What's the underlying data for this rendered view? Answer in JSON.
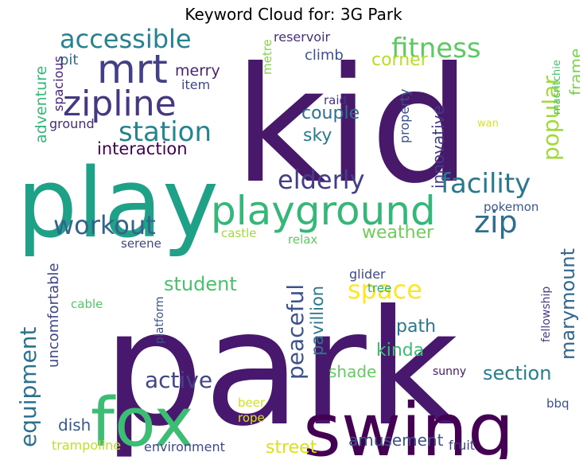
{
  "title": "Keyword Cloud for: 3G Park",
  "colors": {
    "background": "#ffffff",
    "title": "#000000"
  },
  "words": [
    {
      "text": "park",
      "color": "#47186e"
    },
    {
      "text": "kid",
      "color": "#48196b"
    },
    {
      "text": "play",
      "color": "#1fa187"
    },
    {
      "text": "swing",
      "color": "#440154"
    },
    {
      "text": "fox",
      "color": "#3dbc74"
    },
    {
      "text": "playground",
      "color": "#35b779"
    },
    {
      "text": "zipline",
      "color": "#453781"
    },
    {
      "text": "mrt",
      "color": "#424086"
    },
    {
      "text": "station",
      "color": "#25858e"
    },
    {
      "text": "accessible",
      "color": "#26828e"
    },
    {
      "text": "fitness",
      "color": "#5ec962"
    },
    {
      "text": "facility",
      "color": "#2a788e"
    },
    {
      "text": "elderly",
      "color": "#433e85"
    },
    {
      "text": "zip",
      "color": "#2e6e8e"
    },
    {
      "text": "workout",
      "color": "#33638d"
    },
    {
      "text": "popular",
      "color": "#a0da39"
    },
    {
      "text": "interaction",
      "color": "#440154"
    },
    {
      "text": "space",
      "color": "#fde725"
    },
    {
      "text": "peaceful",
      "color": "#3b528b"
    },
    {
      "text": "active",
      "color": "#414487"
    },
    {
      "text": "equipment",
      "color": "#2c728e"
    },
    {
      "text": "marymount",
      "color": "#31688e"
    },
    {
      "text": "pavillion",
      "color": "#2a788e"
    },
    {
      "text": "uncomfortable",
      "color": "#404688"
    },
    {
      "text": "student",
      "color": "#4ac16d"
    },
    {
      "text": "weather",
      "color": "#6ece58"
    },
    {
      "text": "section",
      "color": "#277f8e"
    },
    {
      "text": "innovative",
      "color": "#443983"
    },
    {
      "text": "couple",
      "color": "#2c728e"
    },
    {
      "text": "frame",
      "color": "#7ad151"
    },
    {
      "text": "corner",
      "color": "#b5de2b"
    },
    {
      "text": "sky",
      "color": "#287c8e"
    },
    {
      "text": "path",
      "color": "#2a778e"
    },
    {
      "text": "kinda",
      "color": "#3dbc74"
    },
    {
      "text": "shade",
      "color": "#63cb5f"
    },
    {
      "text": "street",
      "color": "#d8e219"
    },
    {
      "text": "amusement",
      "color": "#3b528b"
    },
    {
      "text": "dish",
      "color": "#38598c"
    },
    {
      "text": "climb",
      "color": "#3b528b"
    },
    {
      "text": "merry",
      "color": "#482576"
    },
    {
      "text": "pit",
      "color": "#2e6e8e"
    },
    {
      "text": "adventure",
      "color": "#35b779"
    },
    {
      "text": "spacious",
      "color": "#482374"
    },
    {
      "text": "item",
      "color": "#3f4788"
    },
    {
      "text": "ground",
      "color": "#472c7a"
    },
    {
      "text": "reservoir",
      "color": "#472f7d"
    },
    {
      "text": "metre",
      "color": "#84d44b"
    },
    {
      "text": "raid",
      "color": "#46327e"
    },
    {
      "text": "property",
      "color": "#3b528b"
    },
    {
      "text": "macritchie",
      "color": "#4ac16d"
    },
    {
      "text": "wan",
      "color": "#dde318"
    },
    {
      "text": "pokemon",
      "color": "#39568c"
    },
    {
      "text": "castle",
      "color": "#a5db36"
    },
    {
      "text": "relax",
      "color": "#5ec962"
    },
    {
      "text": "serene",
      "color": "#3f4788"
    },
    {
      "text": "glider",
      "color": "#3e4a89"
    },
    {
      "text": "tree",
      "color": "#26ad81"
    },
    {
      "text": "fellowship",
      "color": "#433e85"
    },
    {
      "text": "cable",
      "color": "#54c568"
    },
    {
      "text": "platform",
      "color": "#3b528b"
    },
    {
      "text": "sunny",
      "color": "#48186a"
    },
    {
      "text": "beer",
      "color": "#d2e21b"
    },
    {
      "text": "rope",
      "color": "#dae319"
    },
    {
      "text": "bbq",
      "color": "#3b528b"
    },
    {
      "text": "trampoline",
      "color": "#c0df25"
    },
    {
      "text": "environment",
      "color": "#3e4989"
    },
    {
      "text": "fruit",
      "color": "#414487"
    }
  ]
}
